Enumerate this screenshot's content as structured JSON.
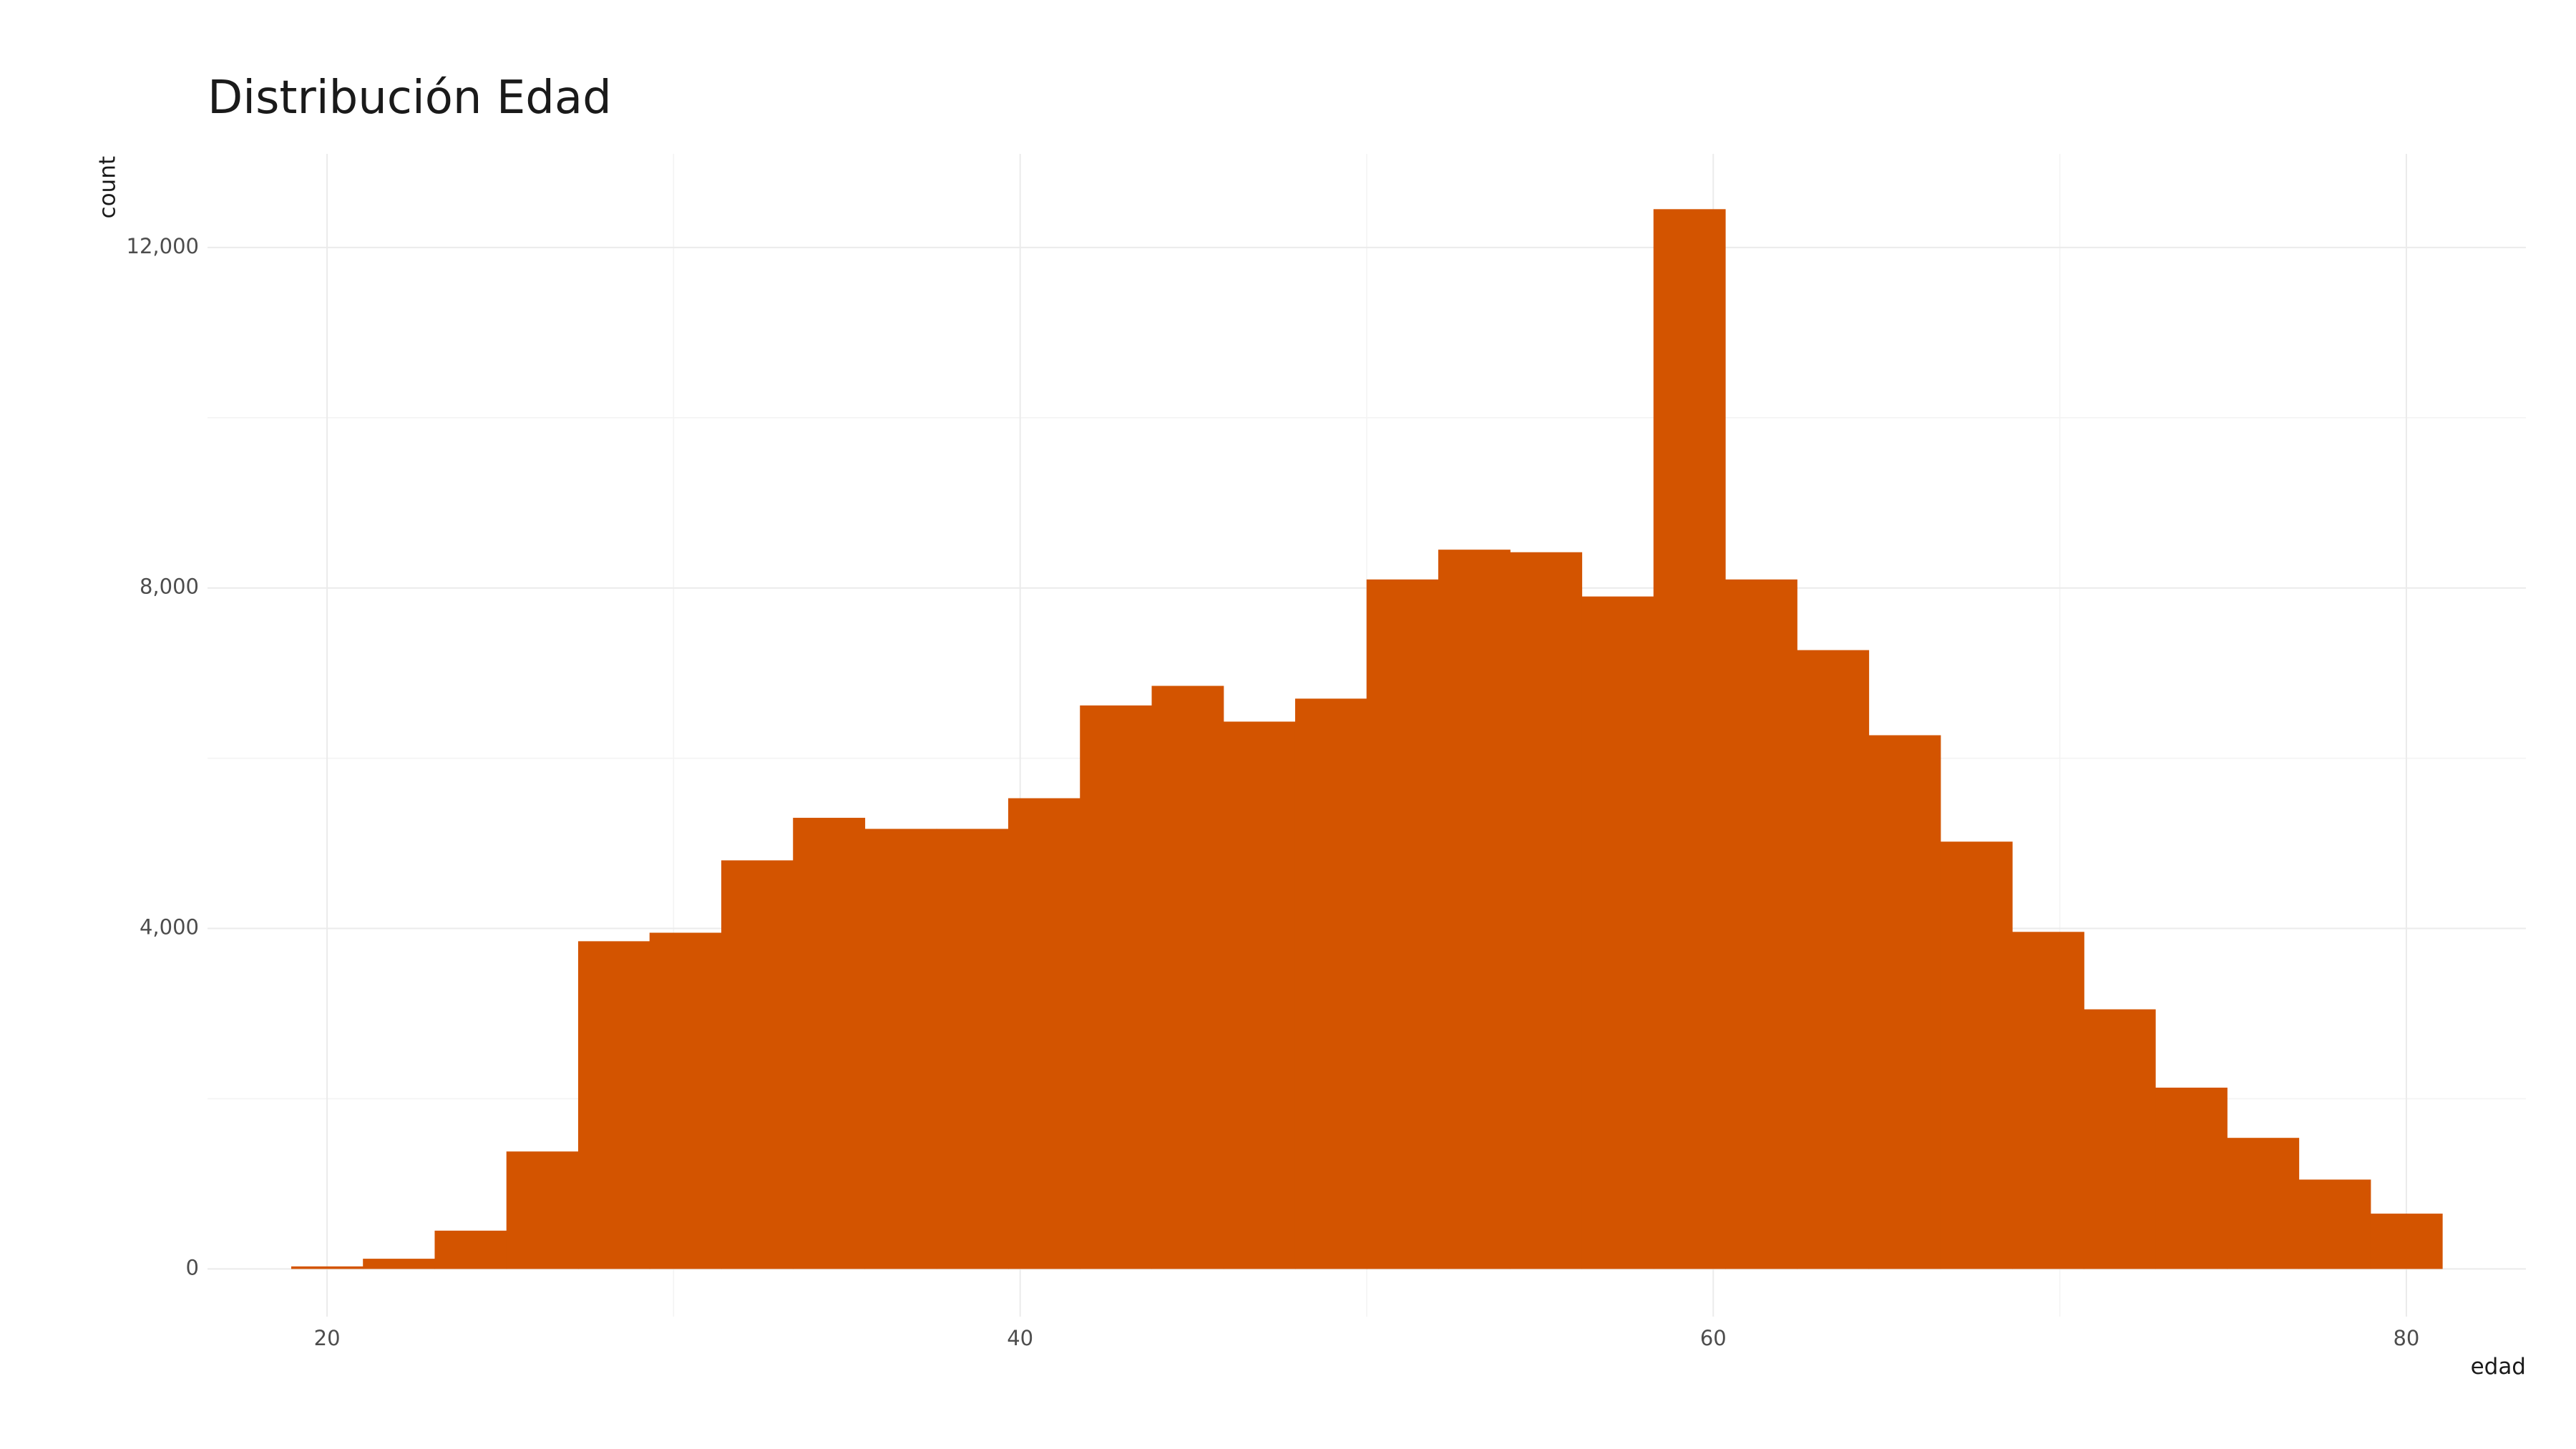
{
  "chart_data": {
    "type": "bar",
    "title": "Distribución Edad",
    "xlabel": "edad",
    "ylabel": "count",
    "bar_color": "#D35400",
    "bin_width": 2.07,
    "bins": [
      {
        "x": 20.0,
        "count": 30
      },
      {
        "x": 22.07,
        "count": 120
      },
      {
        "x": 24.14,
        "count": 450
      },
      {
        "x": 26.21,
        "count": 1380
      },
      {
        "x": 28.28,
        "count": 3850
      },
      {
        "x": 30.34,
        "count": 3950
      },
      {
        "x": 32.41,
        "count": 4800
      },
      {
        "x": 34.48,
        "count": 5300
      },
      {
        "x": 36.55,
        "count": 5170
      },
      {
        "x": 38.62,
        "count": 5170
      },
      {
        "x": 40.69,
        "count": 5530
      },
      {
        "x": 42.76,
        "count": 6620
      },
      {
        "x": 44.83,
        "count": 6850
      },
      {
        "x": 46.9,
        "count": 6430
      },
      {
        "x": 48.97,
        "count": 6700
      },
      {
        "x": 51.03,
        "count": 8100
      },
      {
        "x": 53.1,
        "count": 8450
      },
      {
        "x": 55.17,
        "count": 8420
      },
      {
        "x": 57.24,
        "count": 7900
      },
      {
        "x": 59.31,
        "count": 12450
      },
      {
        "x": 61.38,
        "count": 8100
      },
      {
        "x": 63.45,
        "count": 7270
      },
      {
        "x": 65.52,
        "count": 6270
      },
      {
        "x": 67.59,
        "count": 5020
      },
      {
        "x": 69.66,
        "count": 3960
      },
      {
        "x": 71.72,
        "count": 3050
      },
      {
        "x": 73.79,
        "count": 2130
      },
      {
        "x": 75.86,
        "count": 1540
      },
      {
        "x": 77.93,
        "count": 1050
      },
      {
        "x": 80.0,
        "count": 650
      }
    ],
    "xlim": [
      16.55,
      83.45
    ],
    "ylim": [
      -560,
      13100
    ],
    "x_ticks": [
      {
        "value": 20,
        "label": "20"
      },
      {
        "value": 40,
        "label": "40"
      },
      {
        "value": 60,
        "label": "60"
      },
      {
        "value": 80,
        "label": "80"
      }
    ],
    "x_minor_ticks": [
      30,
      50,
      70
    ],
    "y_ticks": [
      {
        "value": 0,
        "label": "0"
      },
      {
        "value": 4000,
        "label": "4,000"
      },
      {
        "value": 8000,
        "label": "8,000"
      },
      {
        "value": 12000,
        "label": "12,000"
      }
    ],
    "y_minor_ticks": [
      2000,
      6000,
      10000
    ],
    "grid": true,
    "legend": "none"
  }
}
